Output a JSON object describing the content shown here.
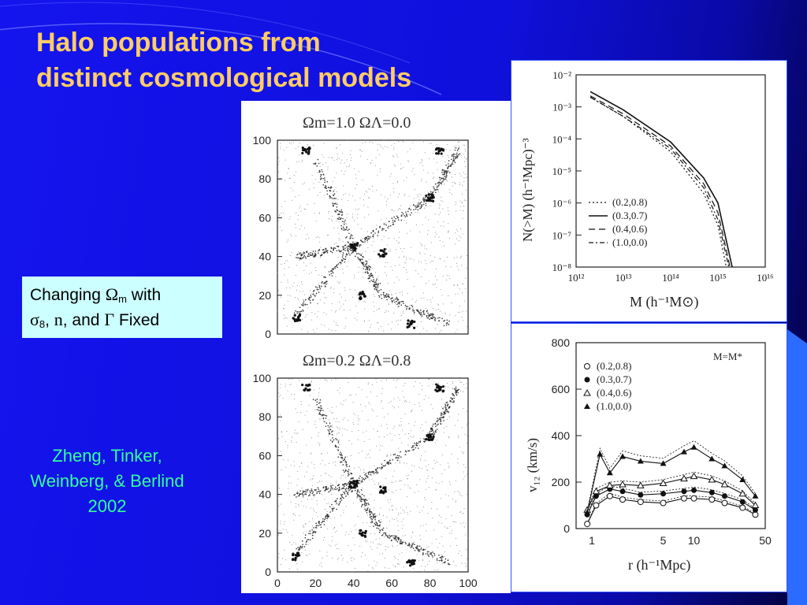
{
  "slide": {
    "title_line1": "Halo populations from",
    "title_line2": "distinct cosmological models",
    "note": {
      "pre": "Changing ",
      "omega": "Ω",
      "m_sub": "m",
      "with": " with",
      "sigma": "σ",
      "eight": "8",
      "comma": ", ",
      "n": "n",
      "and": ", and ",
      "gamma": "Γ",
      "fixed": " Fixed"
    },
    "citation": [
      "Zheng, Tinker,",
      "Weinberg, & Berlind",
      "2002"
    ],
    "colors": {
      "background": "#1414ee",
      "title": "#ffcc66",
      "citation": "#33ff99",
      "note_bg": "#ccffff"
    }
  },
  "simulation": {
    "top_label": "Ωm=1.0  ΩΛ=0.0",
    "bottom_label": "Ωm=0.2  ΩΛ=0.8",
    "y_ticks": [
      "0",
      "20",
      "40",
      "60",
      "80",
      "100"
    ],
    "x_ticks": [
      "0",
      "20",
      "40",
      "60",
      "80",
      "100"
    ]
  },
  "mass_function": {
    "xlabel": "M  (h⁻¹M⊙)",
    "ylabel": "N(>M)  (h⁻¹Mpc)⁻³",
    "x_ticks": [
      "10¹²",
      "10¹³",
      "10¹⁴",
      "10¹⁵",
      "10¹⁶"
    ],
    "y_ticks": [
      "10⁻²",
      "10⁻³",
      "10⁻⁴",
      "10⁻⁵",
      "10⁻⁶",
      "10⁻⁷",
      "10⁻⁸"
    ],
    "legend": [
      "(0.2,0.8)",
      "(0.3,0.7)",
      "(0.4,0.6)",
      "(1.0,0.0)"
    ]
  },
  "velocity": {
    "xlabel": "r  (h⁻¹Mpc)",
    "ylabel": "v₁₂  (km/s)",
    "annotation": "M=M*",
    "x_ticks": [
      "1",
      "5",
      "10",
      "50"
    ],
    "y_ticks": [
      "0",
      "200",
      "400",
      "600",
      "800"
    ],
    "legend": [
      "(0.2,0.8)",
      "(0.3,0.7)",
      "(0.4,0.6)",
      "(1.0,0.0)"
    ]
  },
  "chart_data": [
    {
      "type": "line",
      "xlabel": "M  (h⁻¹M⊙)",
      "ylabel": "N(>M)  (h⁻¹Mpc)⁻³",
      "x_scale": "log",
      "y_scale": "log",
      "xlim": [
        1000000000000.0,
        1e+16
      ],
      "ylim": [
        1e-08,
        0.01
      ],
      "series": [
        {
          "name": "(0.2,0.8)",
          "x": [
            2000000000000.0,
            10000000000000.0,
            100000000000000.0,
            500000000000000.0,
            1000000000000000.0,
            1500000000000000.0
          ],
          "y": [
            0.002,
            0.0005,
            4e-05,
            2e-06,
            2e-07,
            1e-08
          ]
        },
        {
          "name": "(0.3,0.7)",
          "x": [
            2000000000000.0,
            10000000000000.0,
            100000000000000.0,
            500000000000000.0,
            1000000000000000.0,
            2000000000000000.0
          ],
          "y": [
            0.003,
            0.0008,
            8e-05,
            6e-06,
            1e-06,
            1e-08
          ]
        },
        {
          "name": "(0.4,0.6)",
          "x": [
            2000000000000.0,
            10000000000000.0,
            100000000000000.0,
            500000000000000.0,
            1000000000000000.0,
            1800000000000000.0
          ],
          "y": [
            0.0022,
            0.0006,
            6e-05,
            4e-06,
            5e-07,
            1e-08
          ]
        },
        {
          "name": "(1.0,0.0)",
          "x": [
            2000000000000.0,
            10000000000000.0,
            100000000000000.0,
            500000000000000.0,
            1000000000000000.0,
            1700000000000000.0
          ],
          "y": [
            0.002,
            0.0005,
            5e-05,
            3e-06,
            3e-07,
            1e-08
          ]
        }
      ],
      "legend": "bottom-left"
    },
    {
      "type": "line",
      "xlabel": "r  (h⁻¹Mpc)",
      "ylabel": "v₁₂  (km/s)",
      "x_scale": "log",
      "xlim": [
        0.7,
        50
      ],
      "ylim": [
        0,
        800
      ],
      "series": [
        {
          "name": "(0.2,0.8)",
          "x": [
            0.9,
            1.1,
            1.5,
            2,
            3,
            5,
            8,
            10,
            15,
            20,
            30,
            40
          ],
          "y": [
            20,
            100,
            140,
            125,
            115,
            110,
            130,
            130,
            125,
            110,
            90,
            60
          ]
        },
        {
          "name": "(0.3,0.7)",
          "x": [
            0.9,
            1.1,
            1.5,
            2,
            3,
            5,
            8,
            10,
            15,
            20,
            30,
            40
          ],
          "y": [
            60,
            140,
            170,
            160,
            145,
            150,
            160,
            165,
            155,
            140,
            115,
            80
          ]
        },
        {
          "name": "(0.4,0.6)",
          "x": [
            0.9,
            1.1,
            1.5,
            2,
            3,
            5,
            8,
            10,
            15,
            20,
            30,
            40
          ],
          "y": [
            80,
            160,
            185,
            190,
            185,
            195,
            215,
            225,
            210,
            190,
            150,
            100
          ]
        },
        {
          "name": "(1.0,0.0)",
          "x": [
            0.9,
            1.2,
            1.5,
            2,
            3,
            5,
            8,
            10,
            15,
            20,
            30,
            40
          ],
          "y": [
            70,
            320,
            240,
            310,
            290,
            280,
            330,
            350,
            300,
            270,
            210,
            140
          ]
        }
      ],
      "legend": "top-left"
    }
  ]
}
